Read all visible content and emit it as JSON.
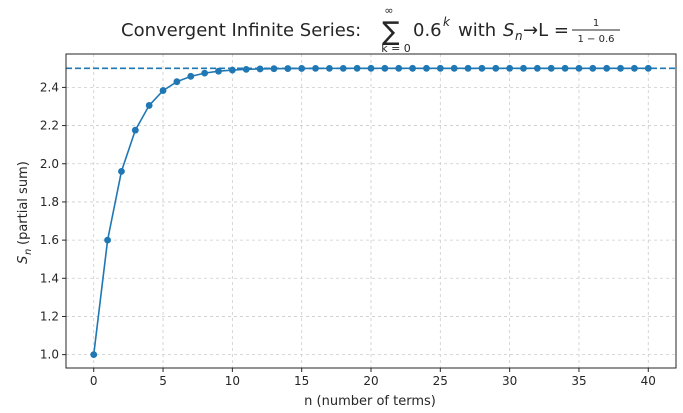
{
  "chart_data": {
    "type": "line",
    "title": {
      "prefix": "Convergent Infinite Series:",
      "sum_symbol": "∑",
      "sum_upper": "∞",
      "sum_lower": "k = 0",
      "term_base": "0.6",
      "term_exponent": "k",
      "middle": "with",
      "s_symbol": "S",
      "s_subscript": "n",
      "arrow_limit": "→L =",
      "frac_numerator": "1",
      "frac_denominator": "1 − 0.6"
    },
    "xlabel": "n (number of terms)",
    "ylabel": {
      "symbol": "S",
      "subscript": "n",
      "text": "(partial sum)"
    },
    "xlim": [
      -2,
      42
    ],
    "ylim": [
      0.93,
      2.575
    ],
    "xticks": [
      0,
      5,
      10,
      15,
      20,
      25,
      30,
      35,
      40
    ],
    "xtick_labels": [
      "0",
      "5",
      "10",
      "15",
      "20",
      "25",
      "30",
      "35",
      "40"
    ],
    "yticks": [
      1.0,
      1.2,
      1.4,
      1.6,
      1.8,
      2.0,
      2.2,
      2.4
    ],
    "ytick_labels": [
      "1.0",
      "1.2",
      "1.4",
      "1.6",
      "1.8",
      "2.0",
      "2.2",
      "2.4"
    ],
    "grid": true,
    "limit_line": {
      "y": 2.5,
      "style": "dashed"
    },
    "series": [
      {
        "x": [
          0,
          1,
          2,
          3,
          4,
          5,
          6,
          7,
          8,
          9,
          10,
          11,
          12,
          13,
          14,
          15,
          16,
          17,
          18,
          19,
          20,
          21,
          22,
          23,
          24,
          25,
          26,
          27,
          28,
          29,
          30,
          31,
          32,
          33,
          34,
          35,
          36,
          37,
          38,
          39,
          40
        ],
        "values": [
          1.0,
          1.6,
          1.96,
          2.176,
          2.3056,
          2.3834,
          2.43,
          2.458,
          2.4748,
          2.4849,
          2.4909,
          2.4945,
          2.4967,
          2.498,
          2.4988,
          2.4993,
          2.4996,
          2.4997,
          2.4998,
          2.4999,
          2.4999,
          2.5,
          2.5,
          2.5,
          2.5,
          2.5,
          2.5,
          2.5,
          2.5,
          2.5,
          2.5,
          2.5,
          2.5,
          2.5,
          2.5,
          2.5,
          2.5,
          2.5,
          2.5,
          2.5,
          2.5
        ]
      }
    ],
    "colors": {
      "series": "#1f77b4",
      "grid": "#cccccc",
      "axis": "#262626"
    }
  }
}
